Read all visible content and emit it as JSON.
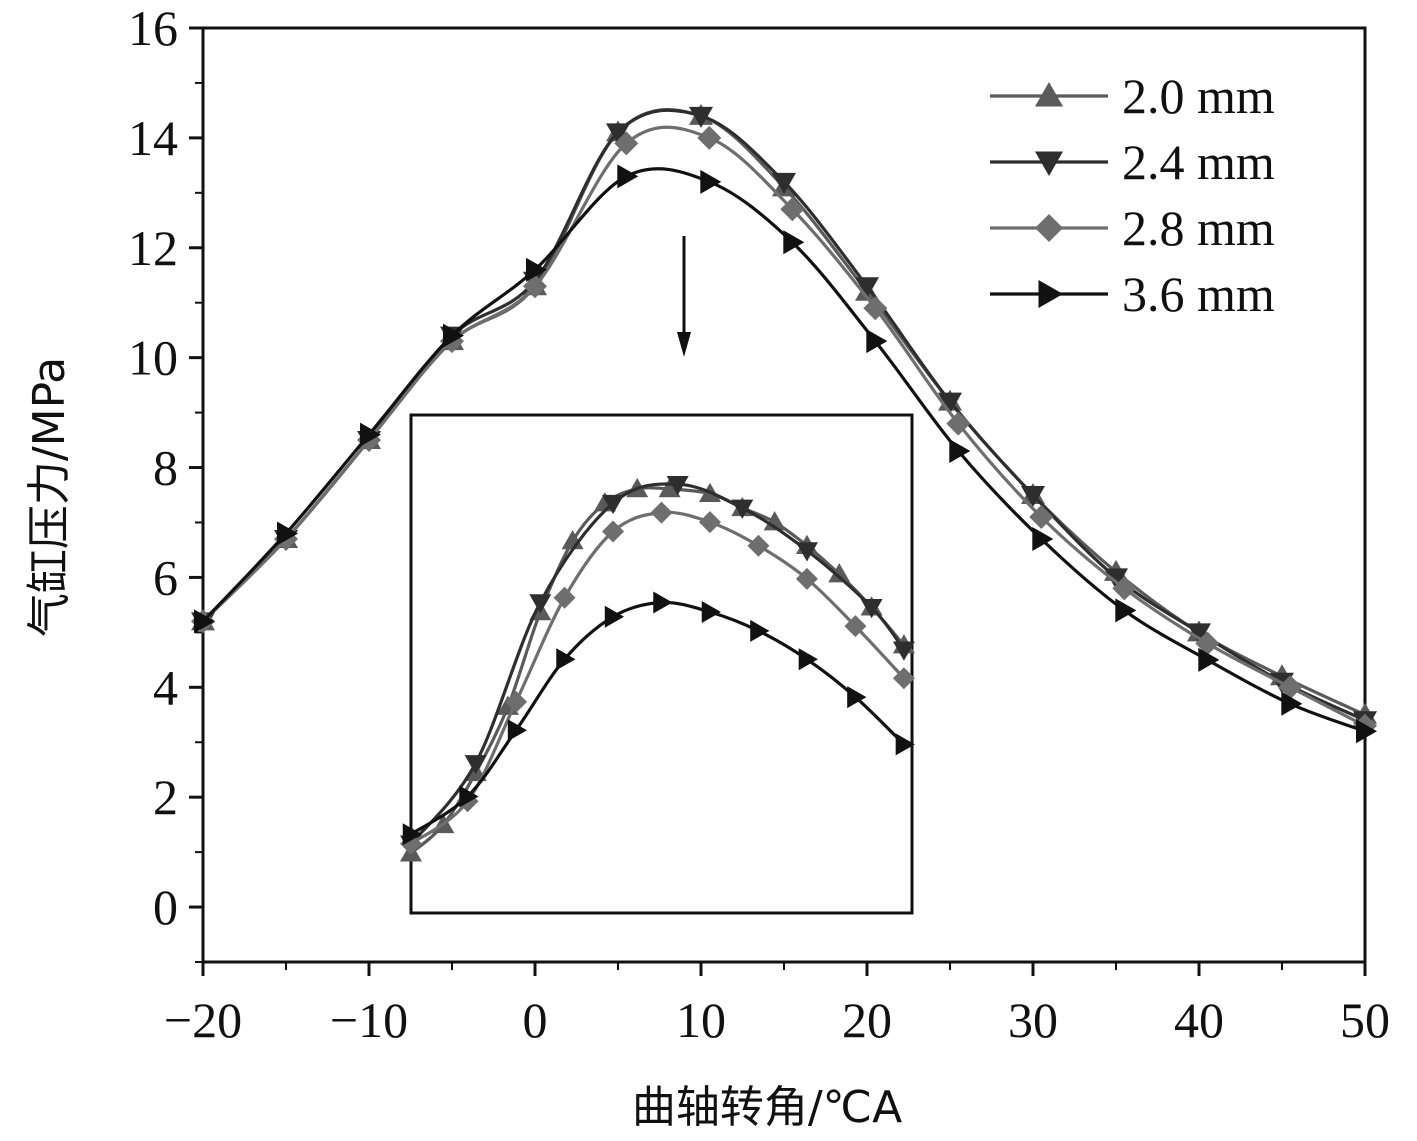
{
  "chart_data": [
    {
      "type": "line",
      "xlabel": "曲轴转角/℃A",
      "ylabel": "气缸压力/MPa",
      "xlim": [
        -20,
        50
      ],
      "ylim": [
        -1,
        16
      ],
      "xticks": [
        -20,
        -10,
        0,
        10,
        20,
        30,
        40,
        50
      ],
      "xtick_labels": [
        "−20",
        "−10",
        "0",
        "10",
        "20",
        "30",
        "40",
        "50"
      ],
      "yticks": [
        0,
        2,
        4,
        6,
        8,
        10,
        12,
        14,
        16
      ],
      "ytick_labels": [
        "0",
        "2",
        "4",
        "6",
        "8",
        "10",
        "12",
        "14",
        "16"
      ],
      "grid": false,
      "legend_position": "top-right",
      "series": [
        {
          "name": "2.0 mm",
          "color": "#5a5a5a",
          "marker": "triangle-up",
          "x": [
            -20,
            -15,
            -10,
            -5,
            0,
            5,
            10,
            15,
            20,
            25,
            30,
            35,
            40,
            45,
            50
          ],
          "y": [
            5.2,
            6.7,
            8.5,
            10.3,
            11.3,
            14.1,
            14.4,
            13.1,
            11.2,
            9.2,
            7.5,
            6.1,
            5.0,
            4.2,
            3.5
          ]
        },
        {
          "name": "2.4 mm",
          "color": "#2e2e2e",
          "marker": "triangle-down",
          "x": [
            -20,
            -15,
            -10,
            -5,
            0,
            5,
            10,
            15,
            20,
            25,
            30,
            35,
            40,
            45,
            50
          ],
          "y": [
            5.2,
            6.7,
            8.5,
            10.4,
            11.4,
            14.1,
            14.4,
            13.2,
            11.3,
            9.2,
            7.5,
            6.0,
            5.0,
            4.1,
            3.4
          ]
        },
        {
          "name": "2.8 mm",
          "color": "#6e6e6e",
          "marker": "diamond",
          "x": [
            -20,
            -15,
            -10,
            -5,
            0,
            5.5,
            10.5,
            15.5,
            20.5,
            25.5,
            30.5,
            35.5,
            40.5,
            45.5,
            50
          ],
          "y": [
            5.2,
            6.7,
            8.5,
            10.3,
            11.3,
            13.9,
            14.0,
            12.7,
            10.9,
            8.8,
            7.1,
            5.8,
            4.8,
            4.0,
            3.3
          ]
        },
        {
          "name": "3.6 mm",
          "color": "#111111",
          "marker": "triangle-right",
          "x": [
            -20,
            -15,
            -10,
            -5,
            0,
            5.5,
            10.5,
            15.5,
            20.5,
            25.5,
            30.5,
            35.5,
            40.5,
            45.5,
            50
          ],
          "y": [
            5.2,
            6.8,
            8.6,
            10.4,
            11.6,
            13.3,
            13.2,
            12.1,
            10.3,
            8.3,
            6.7,
            5.4,
            4.5,
            3.7,
            3.2
          ]
        }
      ]
    },
    {
      "type": "line",
      "role": "inset",
      "xlim": [
        -8,
        23
      ],
      "ylim": [
        -0.6,
        9.8
      ],
      "series": [
        {
          "name": "2.0 mm",
          "marker": "triangle-up",
          "x": [
            -8,
            -6,
            -4,
            -2,
            0,
            2,
            4,
            6,
            8,
            10.5,
            12.5,
            14.5,
            16.5,
            18.5,
            20.5,
            22.5
          ],
          "y": [
            0.6,
            1.2,
            2.3,
            3.7,
            5.7,
            7.2,
            8.0,
            8.3,
            8.3,
            8.2,
            7.9,
            7.6,
            7.1,
            6.5,
            5.8,
            5.0
          ]
        },
        {
          "name": "2.4 mm",
          "marker": "triangle-down",
          "x": [
            -8,
            -4,
            0,
            4.5,
            8.5,
            12.5,
            16.5,
            20.5,
            22.5
          ],
          "y": [
            0.8,
            2.5,
            5.9,
            8.0,
            8.4,
            7.9,
            7.0,
            5.8,
            4.9
          ]
        },
        {
          "name": "2.8 mm",
          "marker": "diamond",
          "x": [
            -8,
            -4.5,
            -1.5,
            1.5,
            4.5,
            7.5,
            10.5,
            13.5,
            16.5,
            19.5,
            22.5
          ],
          "y": [
            0.8,
            1.7,
            3.8,
            6.0,
            7.4,
            7.8,
            7.6,
            7.1,
            6.4,
            5.4,
            4.3
          ]
        },
        {
          "name": "3.6 mm",
          "marker": "triangle-right",
          "x": [
            -8,
            -4.5,
            -1.5,
            1.5,
            4.5,
            7.5,
            10.5,
            13.5,
            16.5,
            19.5,
            22.5
          ],
          "y": [
            1.0,
            1.8,
            3.2,
            4.7,
            5.6,
            5.9,
            5.7,
            5.3,
            4.7,
            3.9,
            2.9
          ]
        }
      ]
    }
  ]
}
